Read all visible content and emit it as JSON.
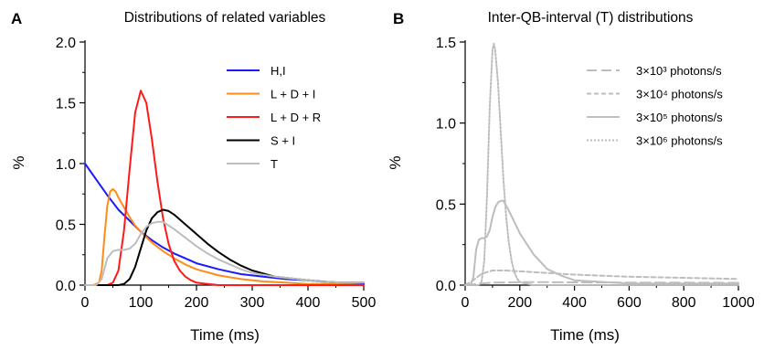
{
  "chart_data": [
    {
      "type": "line",
      "panel_label": "A",
      "title": "Distributions of related variables",
      "xlabel": "Time (ms)",
      "ylabel": "%",
      "xlim": [
        0,
        500
      ],
      "ylim": [
        0,
        2.0
      ],
      "xticks": [
        "0",
        "100",
        "200",
        "300",
        "400",
        "500"
      ],
      "yticks": [
        "0.0",
        "0.5",
        "1.0",
        "1.5",
        "2.0"
      ],
      "legend_position": "top-right",
      "series": [
        {
          "name": "H,I",
          "color": "#1a1aff",
          "x": [
            0,
            20,
            40,
            60,
            80,
            100,
            120,
            140,
            160,
            180,
            200,
            240,
            280,
            320,
            360,
            400,
            450,
            500
          ],
          "y": [
            1.0,
            0.87,
            0.74,
            0.62,
            0.53,
            0.44,
            0.37,
            0.31,
            0.26,
            0.22,
            0.18,
            0.13,
            0.09,
            0.07,
            0.05,
            0.04,
            0.02,
            0.01
          ]
        },
        {
          "name": "L + D + I",
          "color": "#ff8c1a",
          "x": [
            0,
            15,
            25,
            30,
            35,
            40,
            45,
            50,
            55,
            60,
            70,
            80,
            90,
            100,
            120,
            140,
            160,
            180,
            200,
            240,
            280,
            320,
            360,
            400,
            450,
            500
          ],
          "y": [
            0,
            0,
            0.02,
            0.12,
            0.4,
            0.65,
            0.77,
            0.79,
            0.77,
            0.72,
            0.64,
            0.56,
            0.49,
            0.44,
            0.35,
            0.28,
            0.22,
            0.17,
            0.13,
            0.08,
            0.05,
            0.03,
            0.02,
            0.01,
            0.01,
            0.0
          ]
        },
        {
          "name": "L + D + R",
          "color": "#ff1a1a",
          "x": [
            0,
            40,
            50,
            60,
            70,
            80,
            90,
            100,
            110,
            120,
            130,
            140,
            150,
            160,
            170,
            180,
            190,
            200,
            220,
            240,
            260,
            300,
            500
          ],
          "y": [
            0,
            0,
            0.02,
            0.12,
            0.45,
            0.95,
            1.42,
            1.6,
            1.5,
            1.2,
            0.85,
            0.55,
            0.34,
            0.2,
            0.12,
            0.07,
            0.04,
            0.02,
            0.01,
            0.0,
            0.0,
            0.0,
            0.0
          ]
        },
        {
          "name": "S + I",
          "color": "#000000",
          "x": [
            0,
            60,
            70,
            80,
            90,
            100,
            110,
            120,
            130,
            140,
            150,
            160,
            180,
            200,
            220,
            240,
            260,
            280,
            300,
            340,
            380,
            420,
            460,
            500
          ],
          "y": [
            0,
            0,
            0.01,
            0.05,
            0.15,
            0.3,
            0.45,
            0.55,
            0.6,
            0.62,
            0.61,
            0.58,
            0.5,
            0.42,
            0.34,
            0.27,
            0.21,
            0.16,
            0.12,
            0.07,
            0.05,
            0.03,
            0.02,
            0.02
          ]
        },
        {
          "name": "T",
          "color": "#bdbdbd",
          "x": [
            0,
            20,
            30,
            40,
            50,
            60,
            70,
            80,
            90,
            100,
            110,
            120,
            130,
            140,
            160,
            180,
            200,
            220,
            240,
            260,
            280,
            300,
            340,
            380,
            420,
            460,
            500
          ],
          "y": [
            0,
            0,
            0.05,
            0.22,
            0.28,
            0.29,
            0.29,
            0.3,
            0.34,
            0.42,
            0.48,
            0.51,
            0.52,
            0.52,
            0.46,
            0.39,
            0.32,
            0.26,
            0.21,
            0.17,
            0.13,
            0.1,
            0.07,
            0.05,
            0.03,
            0.02,
            0.02
          ]
        }
      ]
    },
    {
      "type": "line",
      "panel_label": "B",
      "title": "Inter-QB-interval (T) distributions",
      "xlabel": "Time (ms)",
      "ylabel": "%",
      "xlim": [
        0,
        1000
      ],
      "ylim": [
        0,
        1.5
      ],
      "xticks": [
        "0",
        "200",
        "400",
        "600",
        "800",
        "1000"
      ],
      "yticks": [
        "0.0",
        "0.5",
        "1.0",
        "1.5"
      ],
      "legend_position": "top-right",
      "series": [
        {
          "name": "3×10³ photons/s",
          "color": "#bdbdbd",
          "dash": "long-dash",
          "x": [
            0,
            30,
            60,
            100,
            200,
            300,
            400,
            600,
            800,
            1000
          ],
          "y": [
            0,
            0.005,
            0.01,
            0.015,
            0.018,
            0.018,
            0.017,
            0.016,
            0.015,
            0.014
          ]
        },
        {
          "name": "3×10⁴ photons/s",
          "color": "#bdbdbd",
          "dash": "short-dash",
          "x": [
            0,
            30,
            60,
            100,
            150,
            200,
            300,
            400,
            500,
            600,
            800,
            1000
          ],
          "y": [
            0,
            0.03,
            0.07,
            0.09,
            0.09,
            0.085,
            0.075,
            0.065,
            0.058,
            0.052,
            0.045,
            0.038
          ]
        },
        {
          "name": "3×10⁵ photons/s",
          "color": "#bdbdbd",
          "dash": "solid",
          "x": [
            0,
            20,
            30,
            40,
            50,
            60,
            70,
            80,
            90,
            100,
            110,
            120,
            130,
            140,
            160,
            180,
            200,
            250,
            300,
            350,
            400,
            500,
            600,
            800,
            1000
          ],
          "y": [
            0,
            0,
            0.05,
            0.22,
            0.28,
            0.29,
            0.29,
            0.3,
            0.34,
            0.42,
            0.48,
            0.51,
            0.52,
            0.52,
            0.46,
            0.39,
            0.32,
            0.19,
            0.1,
            0.06,
            0.03,
            0.02,
            0.01,
            0.01,
            0.01
          ]
        },
        {
          "name": "3×10⁶ photons/s",
          "color": "#bdbdbd",
          "dash": "dotted",
          "x": [
            0,
            50,
            60,
            70,
            80,
            90,
            100,
            105,
            110,
            120,
            130,
            140,
            150,
            160,
            170,
            180,
            190,
            200,
            220,
            250,
            300,
            1000
          ],
          "y": [
            0,
            0,
            0.02,
            0.15,
            0.55,
            1.1,
            1.45,
            1.49,
            1.45,
            1.25,
            0.95,
            0.65,
            0.42,
            0.26,
            0.15,
            0.08,
            0.04,
            0.02,
            0.01,
            0.0,
            0.0,
            0.0
          ]
        }
      ]
    }
  ]
}
